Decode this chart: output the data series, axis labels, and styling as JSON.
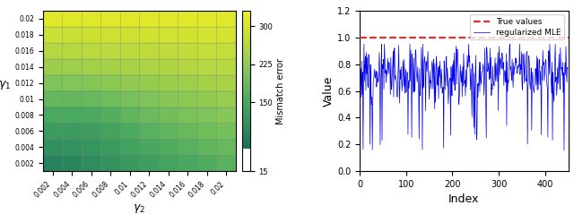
{
  "gamma_values": [
    0.002,
    0.004,
    0.006,
    0.008,
    0.01,
    0.012,
    0.014,
    0.016,
    0.018,
    0.02
  ],
  "heatmap_vmin": 60,
  "heatmap_vmax": 330,
  "colorbar_ticks": [
    15,
    150,
    225,
    300
  ],
  "colorbar_ticklabels": [
    "15",
    "150",
    "225",
    "300"
  ],
  "colorbar_label": "Mismatch error",
  "xlabel_left": "$\\gamma_2$",
  "ylabel_left": "$\\gamma_1$",
  "true_value": 1.0,
  "line_color": "#0000EE",
  "dashed_color": "#FF2222",
  "ylabel_right": "Value",
  "xlabel_right": "Index",
  "ylim_right": [
    0,
    1.2
  ],
  "xlim_right": [
    0,
    450
  ],
  "yticks_right": [
    0,
    0.2,
    0.4,
    0.6,
    0.8,
    1.0,
    1.2
  ],
  "xticks_right": [
    0,
    100,
    200,
    300,
    400
  ],
  "legend_labels": [
    "True values",
    "regularized MLE"
  ],
  "n_points": 450,
  "signal_mean": 0.74,
  "signal_std": 0.11,
  "seed": 12
}
